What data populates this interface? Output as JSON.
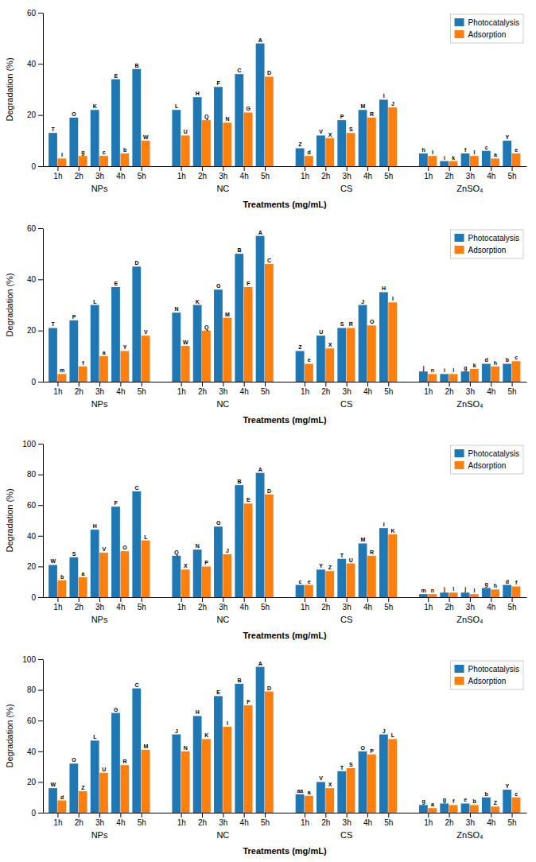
{
  "chart_data": [
    {
      "type": "bar",
      "xlabel": "Treatments (mg/mL)",
      "ylabel": "Degradation (%)",
      "categories": [
        "1h",
        "2h",
        "3h",
        "4h",
        "5h",
        "1h",
        "2h",
        "3h",
        "4h",
        "5h",
        "1h",
        "2h",
        "3h",
        "4h",
        "5h",
        "1h",
        "2h",
        "3h",
        "4h",
        "5h"
      ],
      "group_labels": [
        "NPs",
        "NC",
        "CS",
        "ZnSO₄"
      ],
      "series": [
        {
          "name": "Photocatalysis",
          "values": [
            13,
            19,
            22,
            34,
            38,
            22,
            27,
            31,
            36,
            48,
            7,
            12,
            18,
            22,
            26,
            5,
            2,
            5,
            6,
            10
          ],
          "annotations": [
            "T",
            "O",
            "K",
            "E",
            "B",
            "L",
            "H",
            "F",
            "C",
            "A",
            "Z",
            "V",
            "P",
            "M",
            "I",
            "h",
            "i",
            "f",
            "c",
            "Y"
          ]
        },
        {
          "name": "Adsorption",
          "values": [
            3,
            4,
            4,
            5,
            10,
            12,
            18,
            17,
            21,
            35,
            4,
            11,
            13,
            19,
            23,
            4,
            2,
            4,
            3,
            5
          ],
          "annotations": [
            "l",
            "g",
            "c",
            "b",
            "W",
            "U",
            "Q",
            "N",
            "G",
            "D",
            "d",
            "X",
            "S",
            "R",
            "J",
            "l",
            "k",
            "l",
            "a",
            "e"
          ]
        }
      ],
      "ylim": [
        0,
        60
      ],
      "yticks": [
        0,
        20,
        40,
        60
      ],
      "legend": "upper right",
      "grid": false
    },
    {
      "type": "bar",
      "xlabel": "Treatments (mg/mL)",
      "ylabel": "Degradation (%)",
      "categories": [
        "1h",
        "2h",
        "3h",
        "4h",
        "5h",
        "1h",
        "2h",
        "3h",
        "4h",
        "5h",
        "1h",
        "2h",
        "3h",
        "4h",
        "5h",
        "1h",
        "2h",
        "3h",
        "4h",
        "5h"
      ],
      "group_labels": [
        "NPs",
        "NC",
        "CS",
        "ZnSO₄"
      ],
      "series": [
        {
          "name": "Photocatalysis",
          "values": [
            21,
            24,
            30,
            37,
            45,
            27,
            30,
            36,
            50,
            57,
            12,
            18,
            21,
            30,
            35,
            4,
            3,
            4,
            7,
            7
          ],
          "annotations": [
            "T",
            "P",
            "L",
            "E",
            "D",
            "N",
            "K",
            "G",
            "B",
            "A",
            "Z",
            "U",
            "S",
            "J",
            "H",
            "j",
            "i",
            "g",
            "d",
            "b"
          ]
        },
        {
          "name": "Adsorption",
          "values": [
            3,
            6,
            10,
            12,
            18,
            14,
            20,
            25,
            37,
            46,
            7,
            13,
            21,
            22,
            31,
            3,
            3,
            5,
            6,
            8
          ],
          "annotations": [
            "m",
            "f",
            "a",
            "Y",
            "V",
            "W",
            "Q",
            "M",
            "F",
            "C",
            "e",
            "X",
            "R",
            "O",
            "I",
            "n",
            "l",
            "k",
            "h",
            "c"
          ]
        }
      ],
      "ylim": [
        0,
        60
      ],
      "yticks": [
        0,
        20,
        40,
        60
      ],
      "legend": "upper right",
      "grid": false
    },
    {
      "type": "bar",
      "xlabel": "Treatments (mg/mL)",
      "ylabel": "Degradation (%)",
      "categories": [
        "1h",
        "2h",
        "3h",
        "4h",
        "5h",
        "1h",
        "2h",
        "3h",
        "4h",
        "5h",
        "1h",
        "2h",
        "3h",
        "4h",
        "5h",
        "1h",
        "2h",
        "3h",
        "4h",
        "5h"
      ],
      "group_labels": [
        "NPs",
        "NC",
        "CS",
        "ZnSO₄"
      ],
      "series": [
        {
          "name": "Photocatalysis",
          "values": [
            21,
            26,
            44,
            59,
            69,
            27,
            31,
            46,
            73,
            81,
            8,
            18,
            25,
            35,
            45,
            2,
            3,
            3,
            6,
            8
          ],
          "annotations": [
            "W",
            "S",
            "H",
            "F",
            "C",
            "Q",
            "N",
            "G",
            "B",
            "A",
            "c",
            "Y",
            "T",
            "M",
            "I",
            "m",
            "j",
            "j",
            "g",
            "d"
          ]
        },
        {
          "name": "Adsorption",
          "values": [
            11,
            13,
            29,
            30,
            37,
            18,
            20,
            28,
            61,
            67,
            8,
            17,
            22,
            27,
            41,
            2,
            3,
            2,
            5,
            7
          ],
          "annotations": [
            "b",
            "a",
            "V",
            "O",
            "L",
            "X",
            "P",
            "J",
            "E",
            "D",
            "e",
            "Z",
            "U",
            "R",
            "K",
            "n",
            "l",
            "l",
            "h",
            "f"
          ]
        }
      ],
      "ylim": [
        0,
        100
      ],
      "yticks": [
        0,
        20,
        40,
        60,
        80,
        100
      ],
      "legend": "upper right",
      "grid": false
    },
    {
      "type": "bar",
      "xlabel": "Treatments (mg/mL)",
      "ylabel": "Degradation (%)",
      "categories": [
        "1h",
        "2h",
        "3h",
        "4h",
        "5h",
        "1h",
        "2h",
        "3h",
        "4h",
        "5h",
        "1h",
        "2h",
        "3h",
        "4h",
        "5h",
        "1h",
        "2h",
        "3h",
        "4h",
        "5h"
      ],
      "group_labels": [
        "NPs",
        "NC",
        "CS",
        "ZnSO₄"
      ],
      "series": [
        {
          "name": "Photocatalysis",
          "values": [
            16,
            32,
            47,
            65,
            81,
            51,
            63,
            76,
            84,
            95,
            12,
            20,
            27,
            40,
            51,
            5,
            6,
            6,
            10,
            15
          ],
          "annotations": [
            "W",
            "O",
            "L",
            "G",
            "C",
            "J",
            "H",
            "E",
            "B",
            "A",
            "aa",
            "V",
            "T",
            "O",
            "J",
            "g",
            "g",
            "e",
            "b",
            "Y"
          ]
        },
        {
          "name": "Adsorption",
          "values": [
            8,
            14,
            26,
            31,
            41,
            40,
            48,
            56,
            70,
            79,
            11,
            16,
            29,
            38,
            48,
            3,
            5,
            5,
            4,
            10
          ],
          "annotations": [
            "d",
            "Z",
            "U",
            "R",
            "M",
            "N",
            "K",
            "I",
            "F",
            "D",
            "a",
            "X",
            "S",
            "P",
            "L",
            "a",
            "f",
            "b",
            "Z",
            "c"
          ]
        }
      ],
      "ylim": [
        0,
        100
      ],
      "yticks": [
        0,
        20,
        40,
        60,
        80,
        100
      ],
      "legend": "upper right",
      "grid": false
    }
  ]
}
